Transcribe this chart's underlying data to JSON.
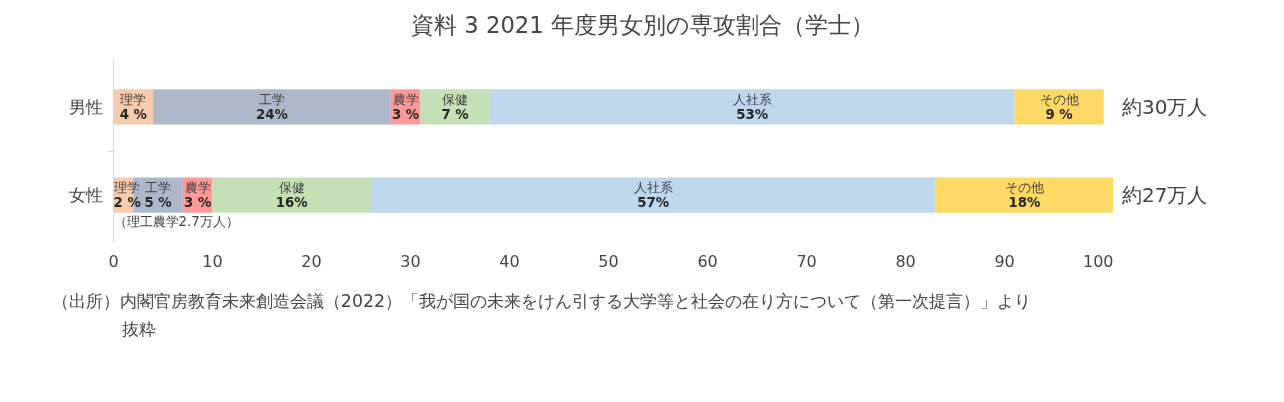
{
  "chart_data": {
    "type": "bar",
    "orientation": "horizontal",
    "stacked": true,
    "title": "資料 3 2021 年度男女別の専攻割合（学士）",
    "categories": [
      "男性",
      "女性"
    ],
    "series": [
      {
        "name": "理学",
        "color": "#f8cbad",
        "values": [
          4,
          2
        ],
        "value_labels": [
          "4 %",
          "2 %"
        ]
      },
      {
        "name": "工学",
        "color": "#adb9ca",
        "values": [
          24,
          5
        ],
        "value_labels": [
          "24%",
          "5 %"
        ]
      },
      {
        "name": "農学",
        "color": "#ff9999",
        "values": [
          3,
          3
        ],
        "value_labels": [
          "3 %",
          "3 %"
        ]
      },
      {
        "name": "保健",
        "color": "#c5e0b4",
        "values": [
          7,
          16
        ],
        "value_labels": [
          "7 %",
          "16%"
        ]
      },
      {
        "name": "人社系",
        "color": "#bdd7ee",
        "values": [
          53,
          57
        ],
        "value_labels": [
          "53%",
          "57%"
        ]
      },
      {
        "name": "その他",
        "color": "#ffd966",
        "values": [
          9,
          18
        ],
        "value_labels": [
          "9 %",
          "18%"
        ]
      }
    ],
    "xlim": [
      0,
      101
    ],
    "xticks": [
      0,
      10,
      20,
      30,
      40,
      50,
      60,
      70,
      80,
      90,
      100
    ],
    "grid": false,
    "annotations": [
      "約30万人",
      "約27万人",
      "（理工農学2.7万人）",
      "（出所）内閣官房教育未来創造会議（2022）「我が国の未来をけん引する大学等と社会の在り方について（第一次提言）」より抜粋"
    ]
  }
}
